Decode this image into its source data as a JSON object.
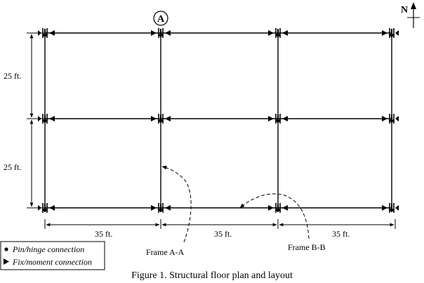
{
  "grid": {
    "marker_label": "A",
    "north_label": "N"
  },
  "dimensions": {
    "horizontal": [
      "35 ft.",
      "35 ft.",
      "35 ft."
    ],
    "vertical": [
      "25 ft.",
      "25 ft."
    ]
  },
  "annotations": {
    "frame_a": "Frame A-A",
    "frame_b": "Frame B-B"
  },
  "legend": {
    "pin_label": "Pin/hinge connection",
    "fix_label": "Fix/moment connection"
  },
  "caption": "Figure 1. Structural floor plan and layout"
}
